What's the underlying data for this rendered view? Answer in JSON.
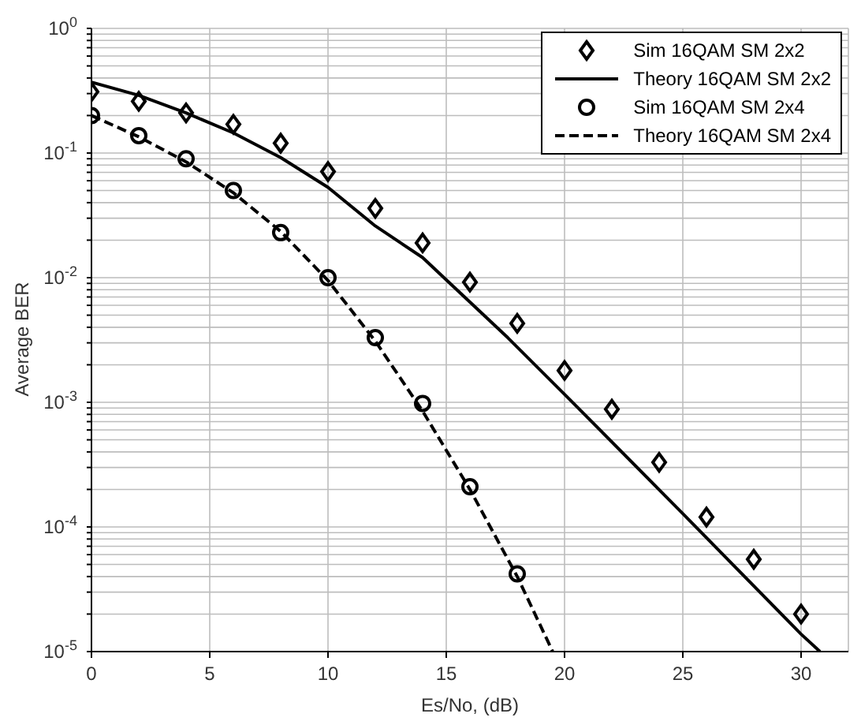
{
  "chart_data": {
    "type": "line",
    "xlabel": "Es/No, (dB)",
    "ylabel": "Average BER",
    "log": "y",
    "grid": true,
    "legend": "top right",
    "xlim": [
      0,
      32
    ],
    "xticks": [
      0,
      5,
      10,
      15,
      20,
      25,
      30
    ],
    "ylim": [
      1e-05,
      1
    ],
    "yticks": [
      {
        "value": 1e-05,
        "label": "10$^{-5}$"
      },
      {
        "value": 2e-05,
        "label": null
      },
      {
        "value": 3e-05,
        "label": null
      },
      {
        "value": 4e-05,
        "label": null
      },
      {
        "value": 5e-05,
        "label": null
      },
      {
        "value": 6e-05,
        "label": null
      },
      {
        "value": 7e-05,
        "label": null
      },
      {
        "value": 8e-05,
        "label": null
      },
      {
        "value": 9e-05,
        "label": null
      },
      {
        "value": 0.0001,
        "label": "10$^{-4}$"
      },
      {
        "value": 0.0002,
        "label": null
      },
      {
        "value": 0.0003,
        "label": null
      },
      {
        "value": 0.0004,
        "label": null
      },
      {
        "value": 0.0005,
        "label": null
      },
      {
        "value": 0.0006,
        "label": null
      },
      {
        "value": 0.0007,
        "label": null
      },
      {
        "value": 0.0008,
        "label": null
      },
      {
        "value": 0.0009,
        "label": null
      },
      {
        "value": 0.001,
        "label": "10$^{-3}$"
      },
      {
        "value": 0.002,
        "label": null
      },
      {
        "value": 0.003,
        "label": null
      },
      {
        "value": 0.004,
        "label": null
      },
      {
        "value": 0.005,
        "label": null
      },
      {
        "value": 0.006,
        "label": null
      },
      {
        "value": 0.007,
        "label": null
      },
      {
        "value": 0.008,
        "label": null
      },
      {
        "value": 0.009,
        "label": null
      },
      {
        "value": 0.01,
        "label": "10$^{-2}$"
      },
      {
        "value": 0.02,
        "label": null
      },
      {
        "value": 0.03,
        "label": null
      },
      {
        "value": 0.04,
        "label": null
      },
      {
        "value": 0.05,
        "label": null
      },
      {
        "value": 0.06,
        "label": null
      },
      {
        "value": 0.07,
        "label": null
      },
      {
        "value": 0.08,
        "label": null
      },
      {
        "value": 0.09,
        "label": null
      },
      {
        "value": 0.1,
        "label": "10$^{-1}$"
      },
      {
        "value": 0.2,
        "label": null
      },
      {
        "value": 0.3,
        "label": null
      },
      {
        "value": 0.4,
        "label": null
      },
      {
        "value": 0.5,
        "label": null
      },
      {
        "value": 0.6,
        "label": null
      },
      {
        "value": 0.7,
        "label": null
      },
      {
        "value": 0.8,
        "label": null
      },
      {
        "value": 0.9,
        "label": null
      },
      {
        "value": 1,
        "label": "10$^{0}$"
      }
    ],
    "series": [
      {
        "name": "Sim 16QAM SM 2x2",
        "type": "scatter",
        "marker": "diamond",
        "color": "#000000",
        "x": [
          0,
          2,
          4,
          6,
          8,
          10,
          12,
          14,
          16,
          18,
          20,
          22,
          24,
          26,
          28,
          30
        ],
        "values": [
          0.31,
          0.26,
          0.21,
          0.17,
          0.12,
          0.071,
          0.036,
          0.019,
          0.0092,
          0.0043,
          0.0018,
          0.00088,
          0.00033,
          0.00012,
          5.5e-05,
          2e-05
        ]
      },
      {
        "name": "Theory 16QAM SM 2x2",
        "marker": "none",
        "line_style": "solid",
        "color": "#000000",
        "x": [
          0,
          2,
          4,
          6,
          8,
          10,
          12,
          14,
          15,
          17.6,
          20,
          25,
          30,
          30.8
        ],
        "values": [
          0.37,
          0.29,
          0.21,
          0.145,
          0.092,
          0.053,
          0.026,
          0.0145,
          0.0096,
          0.0033,
          0.00116,
          0.000128,
          1.38e-05,
          1e-05
        ]
      },
      {
        "name": "Sim 16QAM SM 2x4",
        "type": "scatter",
        "marker": "circle",
        "color": "#000000",
        "x": [
          0,
          2,
          4,
          6,
          8,
          10,
          12,
          14,
          16,
          18
        ],
        "values": [
          0.2,
          0.138,
          0.09,
          0.05,
          0.023,
          0.01,
          0.0033,
          0.00098,
          0.00021,
          4.2e-05
        ]
      },
      {
        "name": "Theory 16QAM SM 2x4",
        "marker": "none",
        "line_style": "dashed",
        "color": "#000000",
        "x": [
          0,
          2,
          4,
          6,
          8,
          10,
          12,
          14,
          16,
          18,
          19.5
        ],
        "values": [
          0.2,
          0.135,
          0.085,
          0.048,
          0.0235,
          0.0095,
          0.0031,
          0.00085,
          0.0002,
          4e-05,
          1e-05
        ]
      }
    ]
  }
}
